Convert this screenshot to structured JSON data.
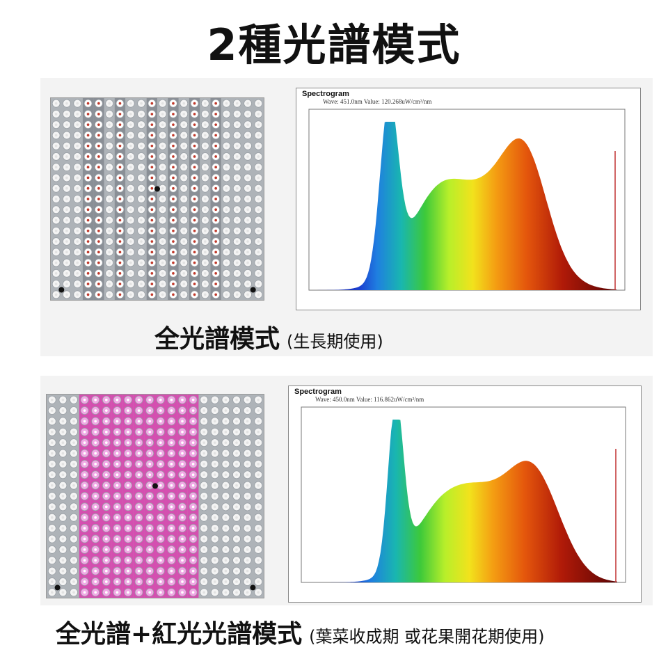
{
  "title": "2種光譜模式",
  "modes": [
    {
      "caption": "全光譜模式",
      "note": "(生長期使用)",
      "spectrogram": {
        "label": "Spectrogram",
        "reading": "Wave: 451.0nm Value: 120.268uW/cm²/nm"
      },
      "panel_stripe_color": "#8a8f96",
      "led_color": "#ffffff"
    },
    {
      "caption": "全光譜+紅光光譜模式",
      "note": "(葉菜收成期 或花果開花期使用)",
      "spectrogram": {
        "label": "Spectrogram",
        "reading": "Wave: 450.0nm Value: 116.862uW/cm²/nm"
      },
      "panel_stripe_color": "#d44fb0",
      "led_color": "#f2a8e6"
    }
  ]
}
